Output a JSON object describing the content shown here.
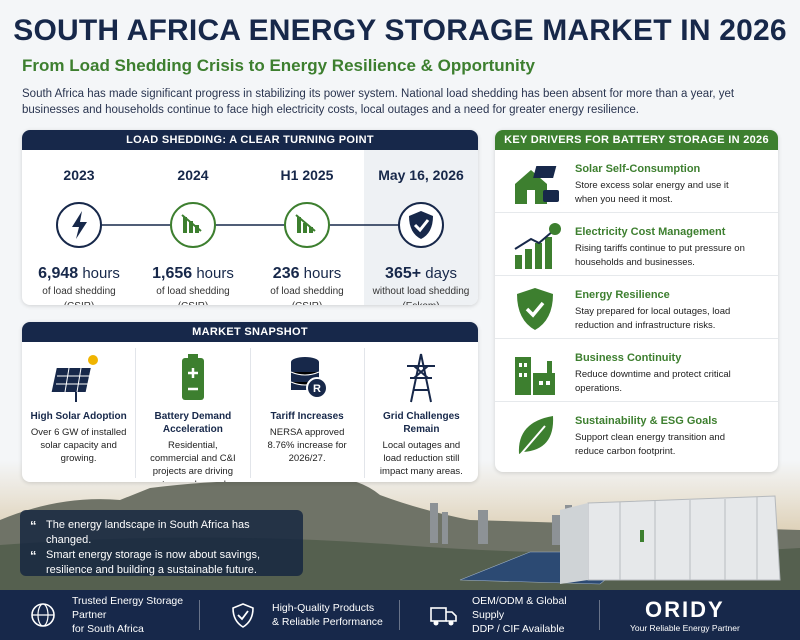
{
  "header": {
    "title": "SOUTH AFRICA ENERGY STORAGE MARKET IN 2026",
    "subtitle": "From Load Shedding Crisis to Energy Resilience & Opportunity",
    "intro": "South Africa has made significant progress in stabilizing its power system. National load shedding has been absent for more than a year, yet businesses and households continue to face high electricity costs, local outages and a need for greater energy resilience."
  },
  "timeline": {
    "heading": "LOAD SHEDDING: A CLEAR TURNING POINT",
    "items": [
      {
        "period": "2023",
        "amount": "6,948",
        "unit": "hours",
        "desc": "of load shedding",
        "source": "(CSIR)"
      },
      {
        "period": "2024",
        "amount": "1,656",
        "unit": "hours",
        "desc": "of load shedding",
        "source": "(CSIR)"
      },
      {
        "period": "H1 2025",
        "amount": "236",
        "unit": "hours",
        "desc": "of load shedding",
        "source": "(CSIR)"
      },
      {
        "period": "May 16, 2026",
        "amount": "365+",
        "unit": "days",
        "desc": "without load shedding",
        "source": "(Eskom)"
      }
    ]
  },
  "snapshot": {
    "heading": "MARKET SNAPSHOT",
    "items": [
      {
        "title": "High Solar Adoption",
        "text": "Over 6 GW of installed solar capacity and growing."
      },
      {
        "title": "Battery Demand Acceleration",
        "text": "Residential, commercial and C&I projects are driving storage demand."
      },
      {
        "title": "Tariff Increases",
        "text": "NERSA approved 8.76% increase for 2026/27."
      },
      {
        "title": "Grid Challenges Remain",
        "text": "Local outages and load reduction still impact many areas."
      }
    ]
  },
  "drivers": {
    "heading": "KEY DRIVERS FOR BATTERY STORAGE IN 2026",
    "items": [
      {
        "title": "Solar Self-Consumption",
        "text": "Store excess solar energy and use it when you need it most."
      },
      {
        "title": "Electricity Cost Management",
        "text": "Rising tariffs continue to put pressure on households and businesses."
      },
      {
        "title": "Energy Resilience",
        "text": "Stay prepared for local outages, load reduction and infrastructure risks."
      },
      {
        "title": "Business Continuity",
        "text": "Reduce downtime and protect critical operations."
      },
      {
        "title": "Sustainability & ESG Goals",
        "text": "Support clean energy transition and reduce carbon footprint."
      }
    ]
  },
  "quote": {
    "lines": [
      "The energy landscape in South Africa has changed.",
      "Smart energy storage is now about savings, resilience and building a sustainable future."
    ]
  },
  "footer": {
    "items": [
      {
        "line1": "Trusted Energy Storage Partner",
        "line2": "for South Africa"
      },
      {
        "line1": "High-Quality Products",
        "line2": "& Reliable Performance"
      },
      {
        "line1": "OEM/ODM & Global Supply",
        "line2": "DDP / CIF Available"
      }
    ],
    "brand": "ORIDY",
    "tagline": "Your Reliable Energy Partner"
  }
}
